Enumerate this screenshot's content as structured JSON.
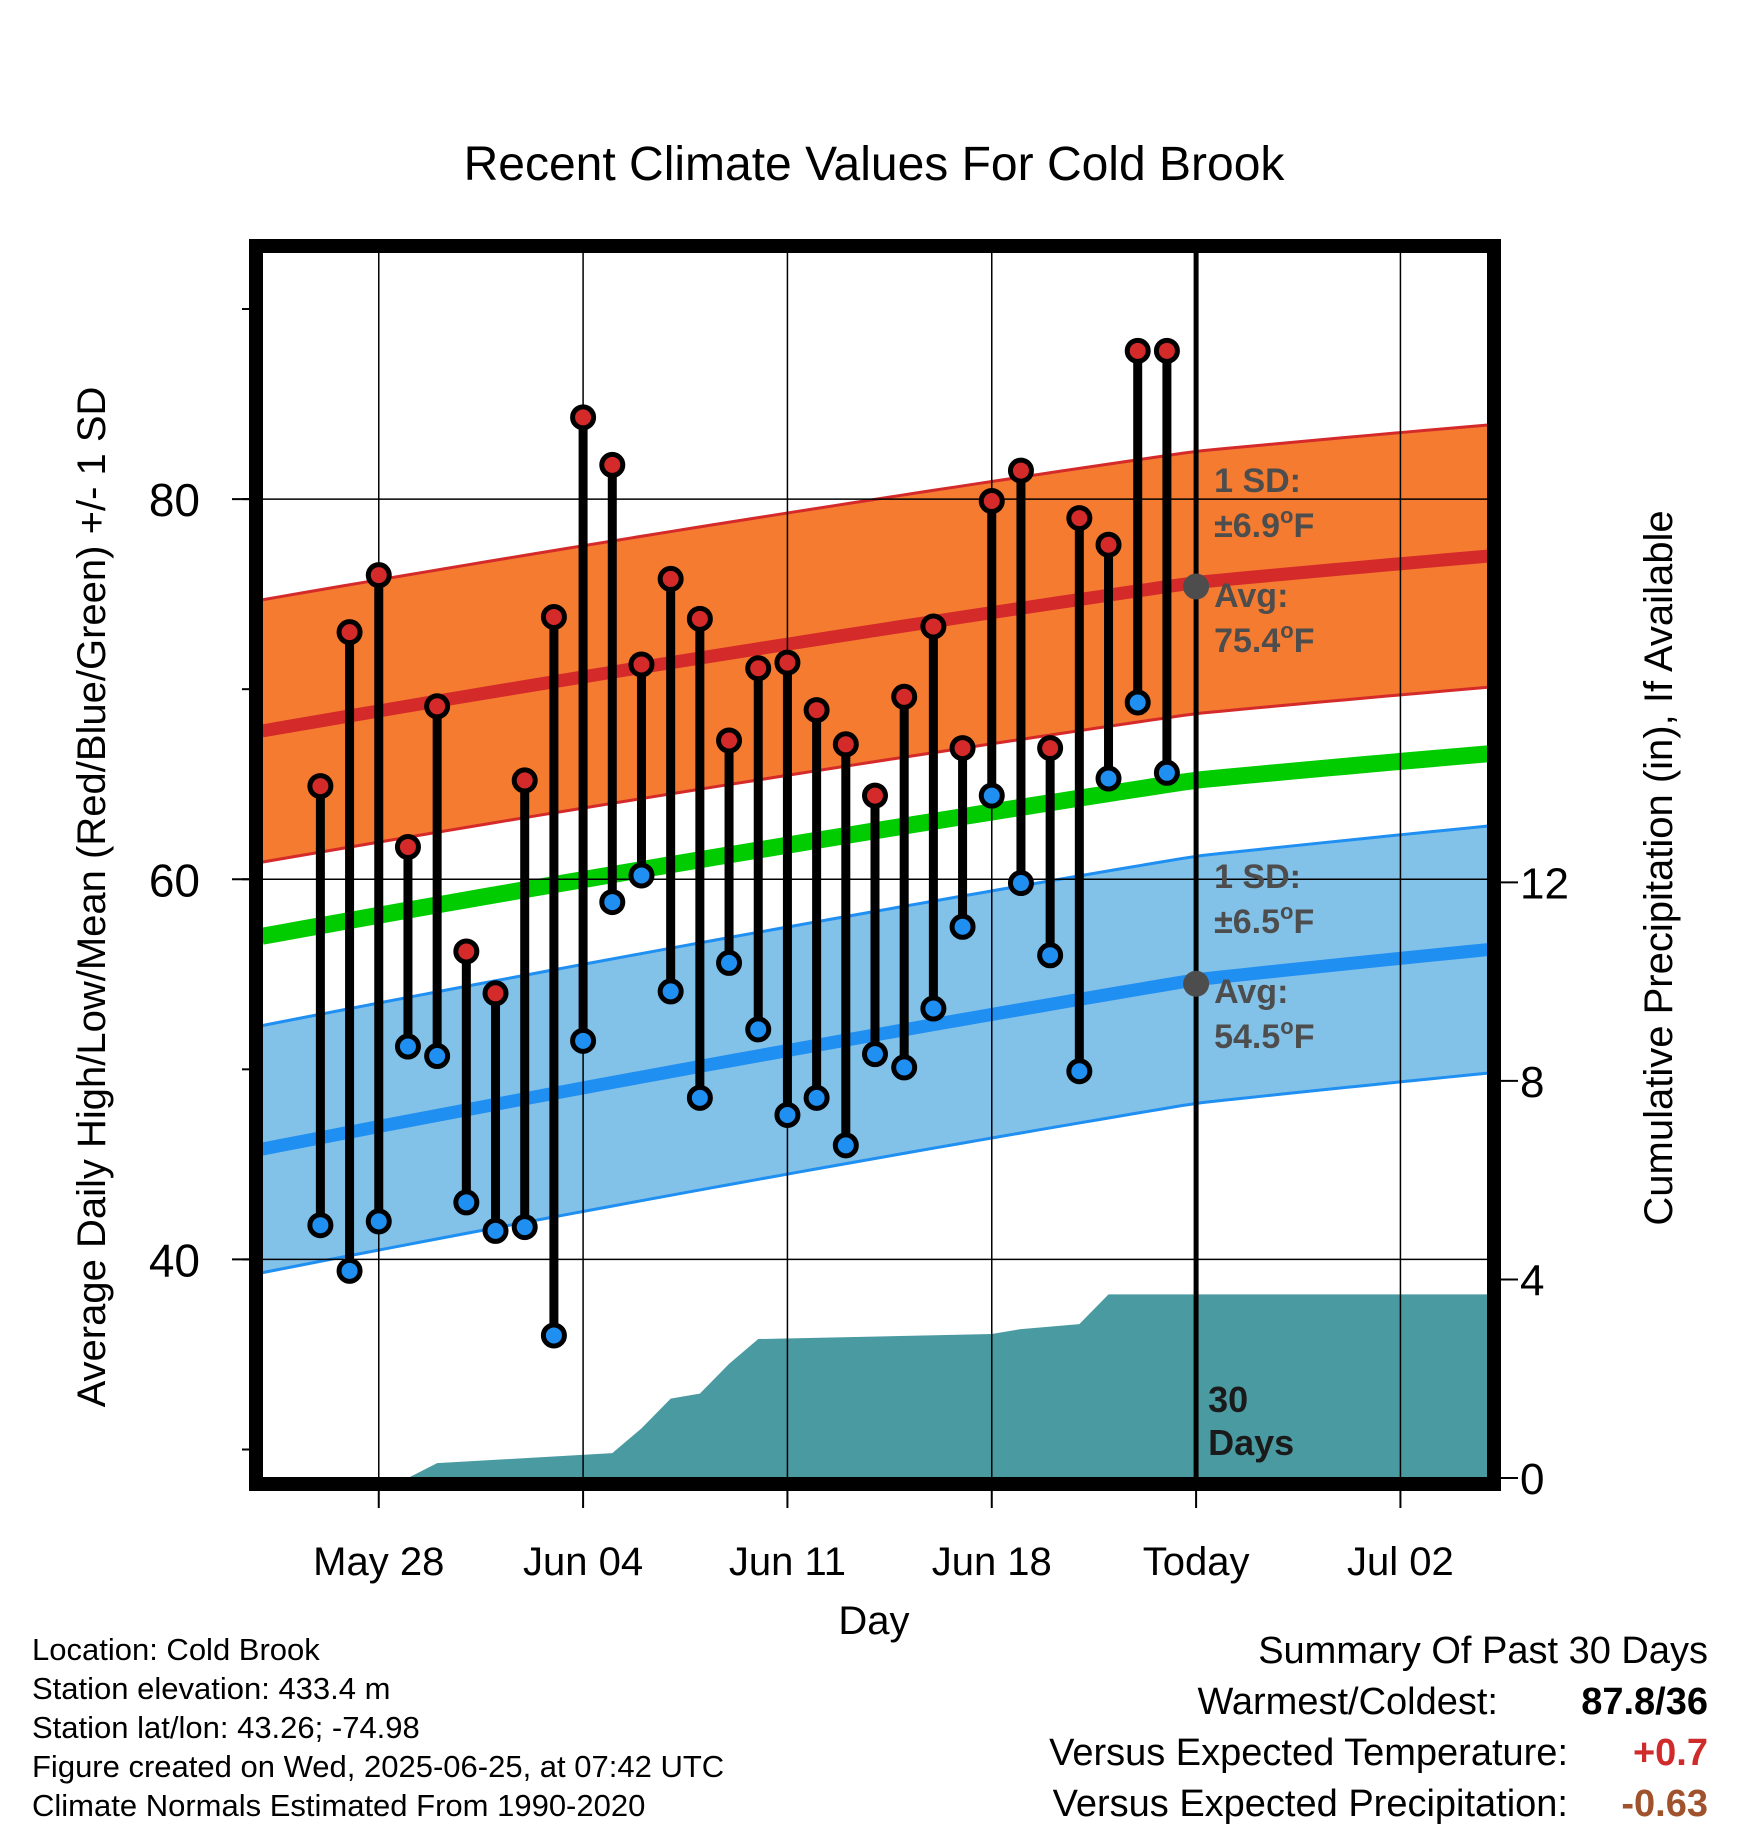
{
  "title": "Recent Climate Values For Cold Brook",
  "colors": {
    "high_band": "#f47b30",
    "high_line": "#d42a2a",
    "low_band": "#82c1e8",
    "low_line": "#1f8ff2",
    "mean_line": "#00cc00",
    "precip": "#4a9aa2",
    "annotation": "#4d4d4d",
    "temp_delta": "#d02b2b",
    "precip_delta": "#a0522d"
  },
  "chart_data": {
    "type": "line",
    "title": "Recent Climate Values For Cold Brook",
    "xlabel": "Day",
    "ylabel_left": "Average Daily High/Low/Mean (Red/Blue/Green) +/- 1 SD",
    "ylabel_right": "Cumulative Precipitation (in), If Available",
    "x_tick_labels": [
      "May 28",
      "Jun 04",
      "Jun 11",
      "Jun 18",
      "Today",
      "Jul 02"
    ],
    "x_tick_dates": [
      "2025-05-28",
      "2025-06-04",
      "2025-06-11",
      "2025-06-18",
      "2025-06-25",
      "2025-07-02"
    ],
    "x_range": [
      "2025-05-24",
      "2025-07-05"
    ],
    "ylim_left": [
      28.5,
      93
    ],
    "y_ticks_left": [
      40,
      60,
      80
    ],
    "ylim_right": [
      0,
      24.7
    ],
    "y_ticks_right": [
      0,
      4,
      8,
      12
    ],
    "grid": true,
    "today": "2025-06-25",
    "today_label": "Today",
    "days_label": [
      "30",
      "Days"
    ],
    "daily": {
      "dates": [
        "2025-05-26",
        "2025-05-27",
        "2025-05-28",
        "2025-05-29",
        "2025-05-30",
        "2025-05-31",
        "2025-06-01",
        "2025-06-02",
        "2025-06-03",
        "2025-06-04",
        "2025-06-05",
        "2025-06-06",
        "2025-06-07",
        "2025-06-08",
        "2025-06-09",
        "2025-06-10",
        "2025-06-11",
        "2025-06-12",
        "2025-06-13",
        "2025-06-14",
        "2025-06-15",
        "2025-06-16",
        "2025-06-17",
        "2025-06-18",
        "2025-06-19",
        "2025-06-20",
        "2025-06-21",
        "2025-06-22",
        "2025-06-23",
        "2025-06-24"
      ],
      "high": [
        64.9,
        73.0,
        76.0,
        61.7,
        69.1,
        56.2,
        54.0,
        65.2,
        73.8,
        84.3,
        81.8,
        71.3,
        75.8,
        73.7,
        67.3,
        71.1,
        71.4,
        68.9,
        67.1,
        64.4,
        69.6,
        73.3,
        66.9,
        79.9,
        81.5,
        66.9,
        79.0,
        77.6,
        87.8,
        87.8
      ],
      "low": [
        41.8,
        39.4,
        42.0,
        51.2,
        50.7,
        43.0,
        41.5,
        41.7,
        36.0,
        51.5,
        58.8,
        60.2,
        54.1,
        48.5,
        55.6,
        52.1,
        47.6,
        48.5,
        46.0,
        50.8,
        50.1,
        53.2,
        57.5,
        64.4,
        59.8,
        56.0,
        49.9,
        65.3,
        69.3,
        65.6
      ]
    },
    "normals": {
      "dates": [
        "2025-05-24",
        "2025-06-25",
        "2025-07-05"
      ],
      "high_mean": [
        67.8,
        75.4,
        77.0
      ],
      "high_upper": [
        74.7,
        82.3,
        83.9
      ],
      "high_lower": [
        60.9,
        68.5,
        70.1
      ],
      "daily_mean": [
        57.0,
        65.0,
        66.6
      ],
      "low_mean": [
        45.8,
        54.5,
        56.3
      ],
      "low_upper": [
        52.3,
        61.0,
        62.8
      ],
      "low_lower": [
        39.3,
        48.0,
        49.8
      ]
    },
    "precip_cum": {
      "dates": [
        "2025-05-24",
        "2025-05-29",
        "2025-05-30",
        "2025-06-05",
        "2025-06-06",
        "2025-06-07",
        "2025-06-08",
        "2025-06-09",
        "2025-06-10",
        "2025-06-18",
        "2025-06-19",
        "2025-06-21",
        "2025-06-22",
        "2025-07-05"
      ],
      "values": [
        0,
        0,
        0.3,
        0.5,
        1.0,
        1.6,
        1.7,
        2.3,
        2.8,
        2.9,
        3.0,
        3.1,
        3.7,
        3.7
      ]
    },
    "annotations": {
      "high_sd": [
        "1 SD:",
        "±6.9°F"
      ],
      "high_avg": [
        "Avg:",
        "75.4°F"
      ],
      "low_sd": [
        "1 SD:",
        "±6.5°F"
      ],
      "low_avg": [
        "Avg:",
        "54.5°F"
      ],
      "high_avg_value": 75.4,
      "low_avg_value": 54.5
    }
  },
  "info": {
    "location": "Location: Cold Brook",
    "elevation": "Station elevation: 433.4 m",
    "latlon": "Station lat/lon: 43.26; -74.98",
    "created": "Figure created on Wed, 2025-06-25, at 07:42 UTC",
    "normals": "Climate Normals Estimated From 1990-2020"
  },
  "summary": {
    "heading": "Summary Of Past 30 Days",
    "warmest_label": "Warmest/Coldest:",
    "warmest_value": "87.8/36",
    "temp_label": "Versus Expected Temperature:",
    "temp_value": "+0.7",
    "precip_label": "Versus Expected Precipitation:",
    "precip_value": "-0.63"
  }
}
